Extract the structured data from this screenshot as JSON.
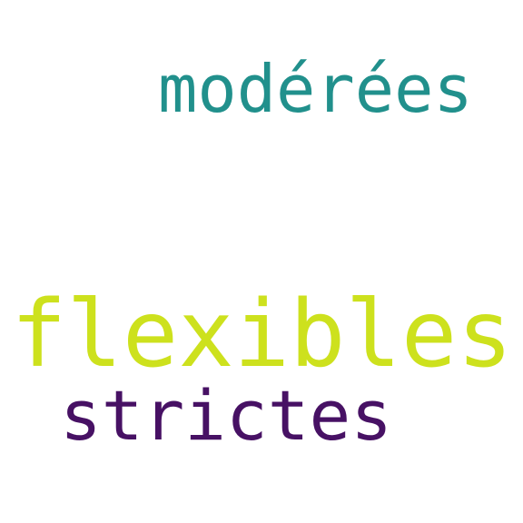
{
  "words": [
    {
      "text": "modérées",
      "color": "#21908c"
    },
    {
      "text": "flexibles",
      "color": "#cde11d"
    },
    {
      "text": "strictes",
      "color": "#471164"
    }
  ]
}
